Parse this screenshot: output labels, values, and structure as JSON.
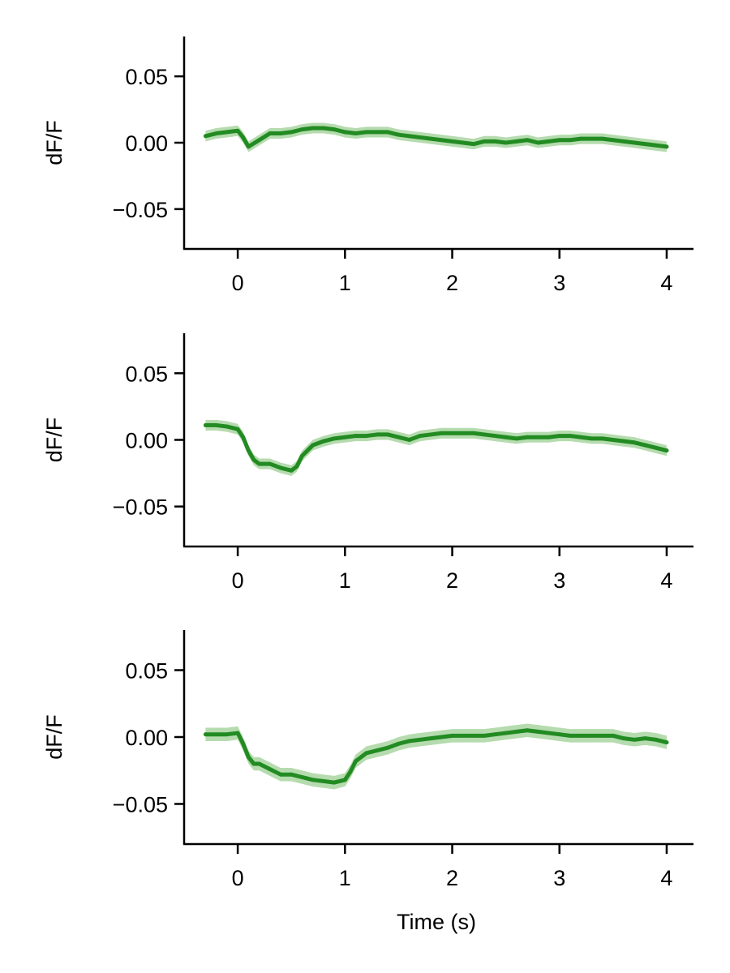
{
  "figure": {
    "line_color": "#228B22",
    "band_color": "#a8d5a0",
    "axis_color": "#000000"
  },
  "chart_data": [
    {
      "type": "line",
      "title": "",
      "xlabel": "",
      "ylabel": "dF/F",
      "xlim": [
        -0.5,
        4.25
      ],
      "ylim": [
        -0.08,
        0.08
      ],
      "xticks": [
        0,
        1,
        2,
        3,
        4
      ],
      "xtick_labels": [
        "0",
        "1",
        "2",
        "3",
        "4"
      ],
      "yticks": [
        0.05,
        0.0,
        -0.05
      ],
      "ytick_labels": [
        "0.05",
        "0.00",
        "−0.05"
      ],
      "grid": false,
      "series": [
        {
          "x": [
            -0.3,
            -0.2,
            -0.1,
            0.0,
            0.05,
            0.1,
            0.2,
            0.3,
            0.4,
            0.5,
            0.6,
            0.7,
            0.8,
            0.9,
            1.0,
            1.1,
            1.2,
            1.3,
            1.4,
            1.5,
            1.6,
            1.7,
            1.8,
            1.9,
            2.0,
            2.1,
            2.2,
            2.3,
            2.4,
            2.5,
            2.6,
            2.7,
            2.8,
            2.9,
            3.0,
            3.1,
            3.2,
            3.3,
            3.4,
            3.5,
            3.6,
            3.7,
            3.8,
            3.9,
            4.0
          ],
          "y": [
            0.005,
            0.007,
            0.008,
            0.009,
            0.004,
            -0.003,
            0.002,
            0.007,
            0.007,
            0.008,
            0.01,
            0.011,
            0.011,
            0.01,
            0.008,
            0.007,
            0.008,
            0.008,
            0.008,
            0.006,
            0.005,
            0.004,
            0.003,
            0.002,
            0.001,
            0.0,
            -0.001,
            0.001,
            0.001,
            0.0,
            0.001,
            0.002,
            0.0,
            0.001,
            0.002,
            0.002,
            0.003,
            0.003,
            0.003,
            0.002,
            0.001,
            0.0,
            -0.001,
            -0.002,
            -0.003
          ],
          "err": 0.004
        }
      ]
    },
    {
      "type": "line",
      "title": "",
      "xlabel": "",
      "ylabel": "dF/F",
      "xlim": [
        -0.5,
        4.25
      ],
      "ylim": [
        -0.08,
        0.08
      ],
      "xticks": [
        0,
        1,
        2,
        3,
        4
      ],
      "xtick_labels": [
        "0",
        "1",
        "2",
        "3",
        "4"
      ],
      "yticks": [
        0.05,
        0.0,
        -0.05
      ],
      "ytick_labels": [
        "0.05",
        "0.00",
        "−0.05"
      ],
      "grid": false,
      "series": [
        {
          "x": [
            -0.3,
            -0.2,
            -0.1,
            0.0,
            0.05,
            0.1,
            0.15,
            0.2,
            0.3,
            0.4,
            0.5,
            0.55,
            0.6,
            0.7,
            0.8,
            0.9,
            1.0,
            1.1,
            1.2,
            1.3,
            1.4,
            1.5,
            1.6,
            1.7,
            1.8,
            1.9,
            2.0,
            2.1,
            2.2,
            2.3,
            2.4,
            2.5,
            2.6,
            2.7,
            2.8,
            2.9,
            3.0,
            3.1,
            3.2,
            3.3,
            3.4,
            3.5,
            3.6,
            3.7,
            3.8,
            3.9,
            4.0
          ],
          "y": [
            0.011,
            0.011,
            0.01,
            0.008,
            0.002,
            -0.008,
            -0.015,
            -0.018,
            -0.018,
            -0.021,
            -0.023,
            -0.02,
            -0.012,
            -0.004,
            -0.001,
            0.001,
            0.002,
            0.003,
            0.003,
            0.004,
            0.004,
            0.002,
            0.0,
            0.003,
            0.004,
            0.005,
            0.005,
            0.005,
            0.005,
            0.004,
            0.003,
            0.002,
            0.001,
            0.002,
            0.002,
            0.002,
            0.003,
            0.003,
            0.002,
            0.001,
            0.001,
            0.0,
            -0.001,
            -0.002,
            -0.004,
            -0.006,
            -0.008
          ],
          "err": 0.004
        }
      ]
    },
    {
      "type": "line",
      "title": "",
      "xlabel": "Time (s)",
      "ylabel": "dF/F",
      "xlim": [
        -0.5,
        4.25
      ],
      "ylim": [
        -0.08,
        0.08
      ],
      "xticks": [
        0,
        1,
        2,
        3,
        4
      ],
      "xtick_labels": [
        "0",
        "1",
        "2",
        "3",
        "4"
      ],
      "yticks": [
        0.05,
        0.0,
        -0.05
      ],
      "ytick_labels": [
        "0.05",
        "0.00",
        "−0.05"
      ],
      "grid": false,
      "series": [
        {
          "x": [
            -0.3,
            -0.2,
            -0.1,
            0.0,
            0.05,
            0.1,
            0.15,
            0.2,
            0.3,
            0.4,
            0.5,
            0.6,
            0.7,
            0.8,
            0.9,
            1.0,
            1.05,
            1.1,
            1.2,
            1.3,
            1.4,
            1.5,
            1.6,
            1.7,
            1.8,
            1.9,
            2.0,
            2.1,
            2.2,
            2.3,
            2.4,
            2.5,
            2.6,
            2.7,
            2.8,
            2.9,
            3.0,
            3.1,
            3.2,
            3.3,
            3.4,
            3.5,
            3.6,
            3.7,
            3.8,
            3.9,
            4.0
          ],
          "y": [
            0.002,
            0.002,
            0.002,
            0.003,
            -0.005,
            -0.015,
            -0.02,
            -0.02,
            -0.024,
            -0.028,
            -0.028,
            -0.03,
            -0.032,
            -0.033,
            -0.034,
            -0.032,
            -0.026,
            -0.018,
            -0.012,
            -0.01,
            -0.008,
            -0.005,
            -0.003,
            -0.002,
            -0.001,
            0.0,
            0.001,
            0.001,
            0.001,
            0.001,
            0.002,
            0.003,
            0.004,
            0.005,
            0.004,
            0.003,
            0.002,
            0.001,
            0.001,
            0.001,
            0.001,
            0.001,
            -0.001,
            -0.002,
            -0.001,
            -0.002,
            -0.004
          ],
          "err": 0.005
        }
      ]
    }
  ]
}
